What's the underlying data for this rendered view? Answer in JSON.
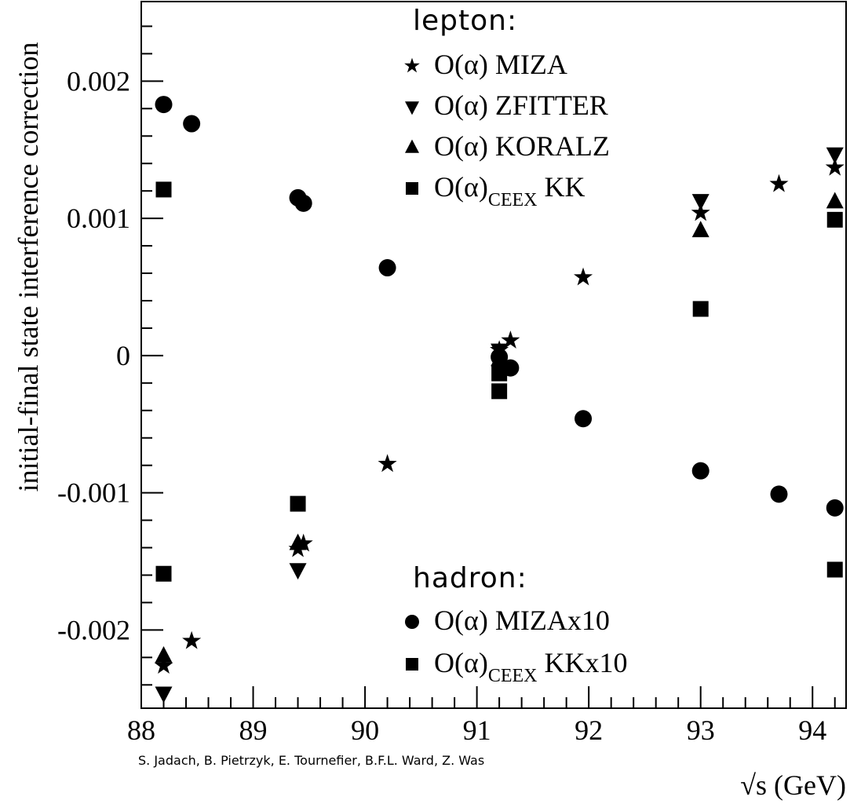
{
  "chart_data": {
    "type": "scatter",
    "xlabel": "√s (GeV)",
    "ylabel": "initial-final state interference correction",
    "xlim": [
      88,
      94.3
    ],
    "ylim": [
      -0.00257,
      0.00258
    ],
    "xticks": [
      "88",
      "89",
      "90",
      "91",
      "92",
      "93",
      "94"
    ],
    "yticks": [
      "-0.002",
      "-0.001",
      "0",
      "0.001",
      "0.002"
    ],
    "grid": false,
    "credit": "S. Jadach, B. Pietrzyk, E. Tournefier, B.F.L. Ward, Z. Was",
    "legend_groups": [
      {
        "title": "lepton:",
        "entries": [
          {
            "marker": "star",
            "main": "O(α) MIZA",
            "sub": "",
            "tail": ""
          },
          {
            "marker": "triangle-down",
            "main": "O(α) ZFITTER",
            "sub": "",
            "tail": ""
          },
          {
            "marker": "triangle-up",
            "main": "O(α) KORALZ",
            "sub": "",
            "tail": ""
          },
          {
            "marker": "square",
            "main": "O(α)",
            "sub": "CEEX",
            "tail": " KK"
          }
        ]
      },
      {
        "title": "hadron:",
        "entries": [
          {
            "marker": "circle",
            "main": "O(α) MIZAx10",
            "sub": "",
            "tail": ""
          },
          {
            "marker": "square",
            "main": "O(α)",
            "sub": "CEEX",
            "tail": "  KKx10"
          }
        ]
      }
    ],
    "series": [
      {
        "name": "lepton O(α) MIZA",
        "marker": "star",
        "points": [
          [
            88.2,
            -0.00226
          ],
          [
            88.45,
            -0.00208
          ],
          [
            89.4,
            -0.00141
          ],
          [
            89.45,
            -0.00137
          ],
          [
            90.2,
            -0.00079
          ],
          [
            91.2,
            4e-05
          ],
          [
            91.3,
            0.00011
          ],
          [
            91.95,
            0.00057
          ],
          [
            93.0,
            0.00104
          ],
          [
            93.7,
            0.00125
          ],
          [
            94.2,
            0.00137
          ]
        ]
      },
      {
        "name": "lepton O(α) ZFITTER",
        "marker": "triangle-down",
        "points": [
          [
            88.2,
            -0.00246
          ],
          [
            89.4,
            -0.00156
          ],
          [
            91.2,
            4e-05
          ],
          [
            93.0,
            0.00113
          ],
          [
            94.2,
            0.00147
          ]
        ]
      },
      {
        "name": "lepton O(α) KORALZ",
        "marker": "triangle-up",
        "points": [
          [
            88.2,
            -0.00219
          ],
          [
            89.4,
            -0.00137
          ],
          [
            91.2,
            -3e-05
          ],
          [
            93.0,
            0.00091
          ],
          [
            94.2,
            0.00112
          ]
        ]
      },
      {
        "name": "lepton O(α)CEEX KK",
        "marker": "square",
        "points": [
          [
            88.2,
            0.00121
          ],
          [
            89.4,
            -0.00108
          ],
          [
            91.2,
            -0.00013
          ],
          [
            93.0,
            0.00034
          ],
          [
            94.2,
            0.00099
          ]
        ]
      },
      {
        "name": "hadron O(α) MIZAx10",
        "marker": "circle",
        "points": [
          [
            88.2,
            0.00183
          ],
          [
            88.45,
            0.00169
          ],
          [
            89.4,
            0.00115
          ],
          [
            89.45,
            0.00111
          ],
          [
            90.2,
            0.00064
          ],
          [
            91.2,
            -1e-05
          ],
          [
            91.3,
            -9e-05
          ],
          [
            91.95,
            -0.00046
          ],
          [
            93.0,
            -0.00084
          ],
          [
            93.7,
            -0.00101
          ],
          [
            94.2,
            -0.00111
          ]
        ]
      },
      {
        "name": "hadron O(α)CEEX KKx10",
        "marker": "square",
        "points": [
          [
            88.2,
            -0.00159
          ],
          [
            91.2,
            -0.00026
          ],
          [
            94.2,
            -0.00156
          ]
        ]
      }
    ]
  }
}
